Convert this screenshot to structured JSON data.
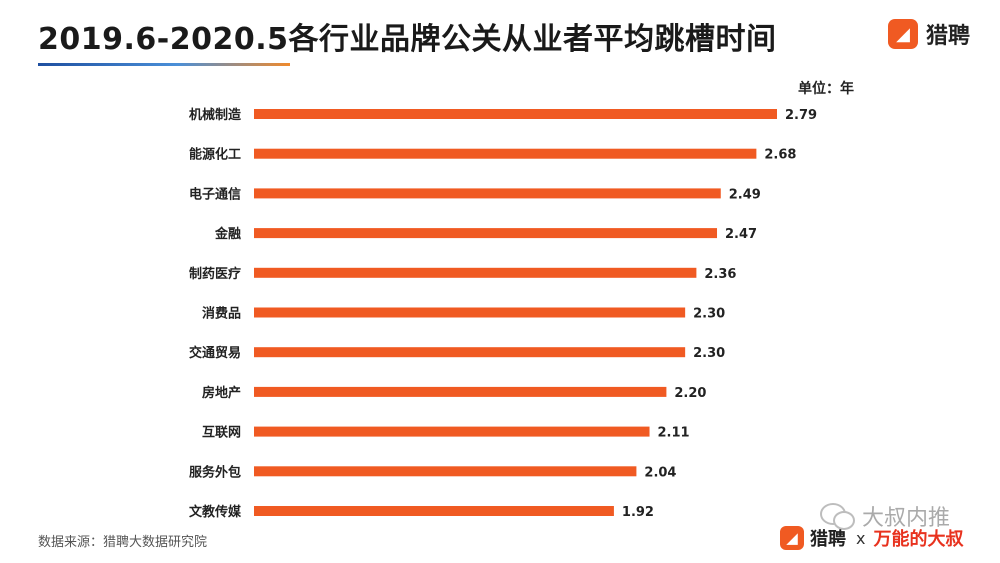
{
  "header": {
    "title": "2019.6-2020.5各行业品牌公关从业者平均跳槽时间",
    "logo_text": "猎聘"
  },
  "unit_label": "单位：年",
  "source": "数据来源：猎聘大数据研究院",
  "footer": {
    "logo_text": "猎聘",
    "x_text": "x",
    "partner_text": "万能的大叔"
  },
  "watermark": {
    "text": "大叔内推"
  },
  "colors": {
    "bar": "#f05a22",
    "logo": "#f05a22",
    "partner": "#e8321e"
  },
  "icons": [
    "liepin-logo-icon",
    "wechat-icon"
  ],
  "chart_data": {
    "type": "bar",
    "orientation": "horizontal",
    "title": "2019.6-2020.5各行业品牌公关从业者平均跳槽时间",
    "unit": "单位：年",
    "categories": [
      "机械制造",
      "能源化工",
      "电子通信",
      "金融",
      "制药医疗",
      "消费品",
      "交通贸易",
      "房地产",
      "互联网",
      "服务外包",
      "文教传媒"
    ],
    "values": [
      2.79,
      2.68,
      2.49,
      2.47,
      2.36,
      2.3,
      2.3,
      2.2,
      2.11,
      2.04,
      1.92
    ],
    "value_labels": [
      "2.79",
      "2.68",
      "2.49",
      "2.47",
      "2.36",
      "2.30",
      "2.30",
      "2.20",
      "2.11",
      "2.04",
      "1.92"
    ],
    "xlim": [
      0,
      2.79
    ],
    "grid": false,
    "data_labels": true
  }
}
